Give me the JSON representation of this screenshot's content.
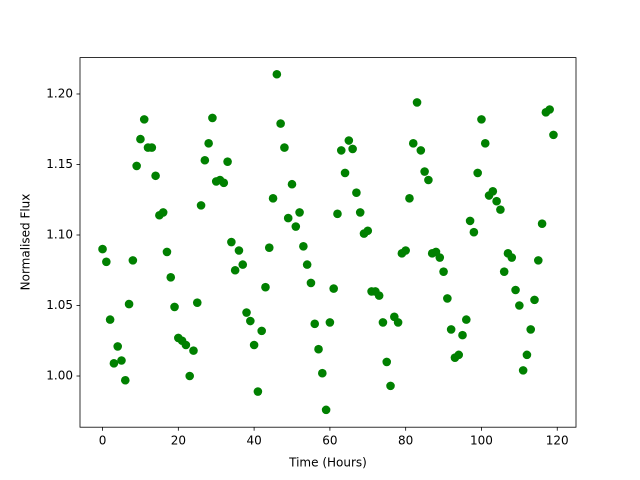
{
  "chart_data": {
    "type": "scatter",
    "xlabel": "Time (Hours)",
    "ylabel": "Normalised Flux",
    "color": "#008000",
    "xlim": [
      -5.95,
      124.95
    ],
    "ylim": [
      0.9637,
      1.2258
    ],
    "xticks": [
      0,
      20,
      40,
      60,
      80,
      100,
      120
    ],
    "yticks": [
      {
        "value": 1,
        "label": "1.00"
      },
      1.05,
      {
        "value": 1.1,
        "label": "1.10"
      },
      1.15,
      {
        "value": 1.2,
        "label": "1.20"
      }
    ],
    "x": [
      0,
      1,
      2,
      3,
      4,
      5,
      6,
      7,
      8,
      9,
      10,
      11,
      12,
      13,
      14,
      15,
      16,
      17,
      18,
      19,
      20,
      21,
      22,
      23,
      24,
      25,
      26,
      27,
      28,
      29,
      30,
      31,
      32,
      33,
      34,
      35,
      36,
      37,
      38,
      39,
      40,
      41,
      42,
      43,
      44,
      45,
      46,
      47,
      48,
      49,
      50,
      51,
      52,
      53,
      54,
      55,
      56,
      57,
      58,
      59,
      60,
      61,
      62,
      63,
      64,
      65,
      66,
      67,
      68,
      69,
      70,
      71,
      72,
      73,
      74,
      75,
      76,
      77,
      78,
      79,
      80,
      81,
      82,
      83,
      84,
      85,
      86,
      87,
      88,
      89,
      90,
      91,
      92,
      93,
      94,
      95,
      96,
      97,
      98,
      99,
      100,
      101,
      102,
      103,
      104,
      105,
      106,
      107,
      108,
      109,
      110,
      111,
      112,
      113,
      114,
      115,
      116,
      117,
      118,
      119
    ],
    "y": [
      1.09,
      1.081,
      1.04,
      1.009,
      1.021,
      1.011,
      0.997,
      1.051,
      1.082,
      1.149,
      1.168,
      1.182,
      1.162,
      1.162,
      1.142,
      1.114,
      1.116,
      1.088,
      1.07,
      1.049,
      1.027,
      1.025,
      1.022,
      1.0,
      1.018,
      1.052,
      1.121,
      1.153,
      1.165,
      1.183,
      1.138,
      1.139,
      1.137,
      1.152,
      1.095,
      1.075,
      1.089,
      1.079,
      1.045,
      1.039,
      1.022,
      0.989,
      1.032,
      1.063,
      1.091,
      1.126,
      1.214,
      1.179,
      1.162,
      1.112,
      1.136,
      1.106,
      1.116,
      1.092,
      1.079,
      1.066,
      1.037,
      1.019,
      1.002,
      0.976,
      1.038,
      1.062,
      1.115,
      1.16,
      1.144,
      1.167,
      1.161,
      1.13,
      1.116,
      1.101,
      1.103,
      1.06,
      1.06,
      1.057,
      1.038,
      1.01,
      0.993,
      1.042,
      1.038,
      1.087,
      1.089,
      1.126,
      1.165,
      1.194,
      1.16,
      1.145,
      1.139,
      1.087,
      1.088,
      1.084,
      1.074,
      1.055,
      1.033,
      1.013,
      1.015,
      1.029,
      1.04,
      1.11,
      1.102,
      1.144,
      1.182,
      1.165,
      1.128,
      1.131,
      1.124,
      1.118,
      1.074,
      1.087,
      1.084,
      1.061,
      1.05,
      1.004,
      1.015,
      1.033,
      1.054,
      1.082,
      1.108,
      1.187,
      1.189,
      1.171
    ]
  }
}
